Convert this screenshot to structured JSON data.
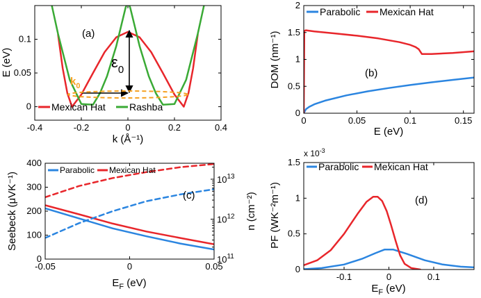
{
  "colors": {
    "red": "#e8262b",
    "green": "#3aaa35",
    "blue": "#2b85e0",
    "orange": "#f5a020",
    "black": "#000000"
  },
  "chart_data": [
    {
      "type": "line",
      "panel_label": "(a)",
      "xlabel": "k (Å⁻¹)",
      "ylabel": "E (eV)",
      "xlim": [
        -0.4,
        0.4
      ],
      "ylim": [
        -0.02,
        0.15
      ],
      "xticks": [
        -0.4,
        -0.2,
        0,
        0.2,
        0.4
      ],
      "xtick_labels": [
        "-0.4",
        "-0.2",
        "0",
        "0.2",
        "0.4"
      ],
      "yticks": [
        0,
        0.05,
        0.1
      ],
      "ytick_labels": [
        "0",
        "0.05",
        "0.1"
      ],
      "annotations": {
        "epsilon": "ε",
        "epsilon_sub": "0",
        "k": "k",
        "k_sub": "0"
      },
      "legend_position": "bottom",
      "series": [
        {
          "name": "Mexican Hat",
          "color": "red",
          "x": [
            -0.3,
            -0.28,
            -0.26,
            -0.24,
            -0.2,
            -0.15,
            -0.1,
            -0.05,
            0,
            0.05,
            0.1,
            0.15,
            0.2,
            0.24,
            0.26,
            0.28,
            0.3
          ],
          "y": [
            0.107,
            0.057,
            0.02,
            0.0,
            0.018,
            0.05,
            0.081,
            0.103,
            0.111,
            0.103,
            0.081,
            0.05,
            0.018,
            0.0,
            0.02,
            0.057,
            0.107
          ]
        },
        {
          "name": "Rashba",
          "color": "green",
          "x": [
            -0.33,
            -0.3,
            -0.25,
            -0.2,
            -0.15,
            -0.12,
            -0.09,
            -0.05,
            -0.01,
            0,
            0.01,
            0.05,
            0.09,
            0.12,
            0.15,
            0.2,
            0.25,
            0.3,
            0.33
          ],
          "y": [
            0.155,
            0.108,
            0.04,
            0.004,
            0.003,
            0.02,
            0.045,
            0.09,
            0.147,
            0.155,
            0.147,
            0.09,
            0.045,
            0.02,
            0.003,
            0.004,
            0.04,
            0.108,
            0.155
          ]
        }
      ]
    },
    {
      "type": "line",
      "panel_label": "(b)",
      "xlabel": "E (eV)",
      "ylabel": "DOM (nm⁻¹)",
      "xlim": [
        0,
        0.16
      ],
      "ylim": [
        0,
        2
      ],
      "xticks": [
        0,
        0.05,
        0.1,
        0.15
      ],
      "xtick_labels": [
        "0",
        "0.05",
        "0.1",
        "0.15"
      ],
      "yticks": [
        0,
        0.5,
        1,
        1.5,
        2
      ],
      "ytick_labels": [
        "0",
        "0.5",
        "1",
        "1.5",
        "2"
      ],
      "legend_position": "top",
      "series": [
        {
          "name": "Parabolic",
          "color": "blue",
          "x": [
            0,
            0.002,
            0.005,
            0.01,
            0.02,
            0.04,
            0.06,
            0.08,
            0.1,
            0.12,
            0.14,
            0.16
          ],
          "y": [
            0.0,
            0.074,
            0.117,
            0.166,
            0.234,
            0.331,
            0.406,
            0.469,
            0.524,
            0.574,
            0.62,
            0.663
          ]
        },
        {
          "name": "Mexican Hat",
          "color": "red",
          "x": [
            0,
            0.0005,
            0.002,
            0.01,
            0.03,
            0.05,
            0.07,
            0.09,
            0.1,
            0.105,
            0.108,
            0.111,
            0.113,
            0.12,
            0.14,
            0.16
          ],
          "y": [
            0.0,
            1.53,
            1.54,
            1.52,
            1.48,
            1.44,
            1.39,
            1.32,
            1.27,
            1.23,
            1.19,
            1.1,
            1.1,
            1.1,
            1.12,
            1.15
          ]
        }
      ]
    },
    {
      "type": "line",
      "panel_label": "(c)",
      "xlabel": "E_F (eV)",
      "ylabel": "Seebeck (μVK⁻¹)",
      "ylabel_right": "n (cm⁻²)",
      "xlim": [
        -0.05,
        0.05
      ],
      "ylim": [
        0,
        400
      ],
      "ylim_right_log10": [
        11,
        13.4
      ],
      "xticks": [
        -0.05,
        0,
        0.05
      ],
      "xtick_labels": [
        "-0.05",
        "0",
        "0.05"
      ],
      "yticks": [
        0,
        100,
        200,
        300,
        400
      ],
      "ytick_labels": [
        "0",
        "100",
        "200",
        "300",
        "400"
      ],
      "yticks_right_log10": [
        11,
        12,
        13
      ],
      "ytick_right_labels": [
        {
          "base": "10",
          "exp": "11"
        },
        {
          "base": "10",
          "exp": "12"
        },
        {
          "base": "10",
          "exp": "13"
        }
      ],
      "legend_position": "top",
      "series": [
        {
          "name": "Parabolic",
          "color": "blue",
          "axis": "left",
          "style": "solid",
          "x": [
            -0.05,
            -0.03,
            -0.01,
            0.01,
            0.03,
            0.05
          ],
          "y": [
            212,
            170,
            128,
            95,
            65,
            40
          ]
        },
        {
          "name": "Mexican Hat",
          "color": "red",
          "axis": "left",
          "style": "solid",
          "x": [
            -0.05,
            -0.03,
            -0.01,
            0.01,
            0.03,
            0.05
          ],
          "y": [
            225,
            187,
            148,
            115,
            88,
            62
          ]
        },
        {
          "name": "Parabolic n",
          "color": "blue",
          "axis": "right",
          "style": "dashed",
          "x": [
            -0.05,
            -0.03,
            -0.01,
            0.01,
            0.03,
            0.05
          ],
          "y": [
            11.53,
            11.9,
            12.2,
            12.45,
            12.62,
            12.75
          ]
        },
        {
          "name": "Mexican Hat n",
          "color": "red",
          "axis": "right",
          "style": "dashed",
          "x": [
            -0.05,
            -0.03,
            -0.01,
            0.01,
            0.03,
            0.05
          ],
          "y": [
            12.55,
            12.83,
            13.03,
            13.18,
            13.3,
            13.38
          ]
        }
      ]
    },
    {
      "type": "line",
      "panel_label": "(d)",
      "xlabel": "E_F (eV)",
      "ylabel": "PF (WK⁻²m⁻¹)",
      "y_multiplier": {
        "base": "x 10",
        "exp": "-3"
      },
      "xlim": [
        -0.19,
        0.19
      ],
      "ylim": [
        0,
        1.5
      ],
      "xticks": [
        -0.1,
        0,
        0.1
      ],
      "xtick_labels": [
        "-0.1",
        "0",
        "0.1"
      ],
      "yticks": [
        0,
        0.5,
        1,
        1.5
      ],
      "ytick_labels": [
        "0",
        "0.5",
        "1",
        "1.5"
      ],
      "legend_position": "top",
      "series": [
        {
          "name": "Parabolic",
          "color": "blue",
          "x": [
            -0.19,
            -0.15,
            -0.1,
            -0.06,
            -0.03,
            -0.01,
            0.01,
            0.04,
            0.08,
            0.12,
            0.16,
            0.19
          ],
          "y": [
            0.005,
            0.02,
            0.07,
            0.15,
            0.23,
            0.28,
            0.28,
            0.22,
            0.13,
            0.07,
            0.04,
            0.03
          ]
        },
        {
          "name": "Mexican Hat",
          "color": "red",
          "x": [
            -0.19,
            -0.16,
            -0.13,
            -0.1,
            -0.07,
            -0.05,
            -0.035,
            -0.025,
            -0.015,
            -0.005,
            0.005,
            0.015,
            0.025,
            0.035,
            0.05,
            0.07
          ],
          "y": [
            0.06,
            0.13,
            0.27,
            0.5,
            0.78,
            0.95,
            1.02,
            1.02,
            0.96,
            0.82,
            0.62,
            0.4,
            0.2,
            0.08,
            0.02,
            0.0
          ]
        }
      ]
    }
  ]
}
